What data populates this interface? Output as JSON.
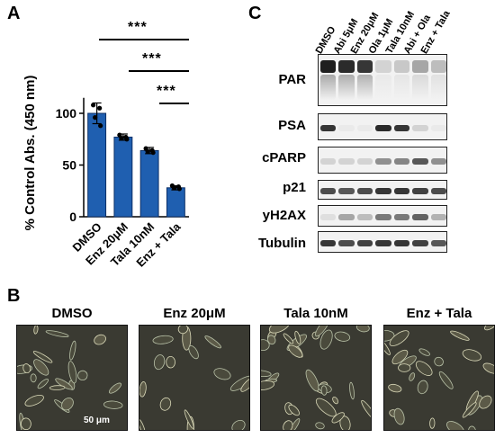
{
  "panels": {
    "a": "A",
    "b": "B",
    "c": "C"
  },
  "significance": {
    "s1": "***",
    "s2": "***",
    "s3": "***"
  },
  "chart_data": {
    "type": "bar",
    "categories": [
      "DMSO",
      "Enz 20μM",
      "Tala 10nM",
      "Enz + Tala"
    ],
    "values": [
      100,
      77,
      64,
      28
    ],
    "errors": [
      10,
      3,
      3,
      2
    ],
    "points": [
      [
        108,
        105,
        96,
        88
      ],
      [
        79,
        77,
        76,
        75
      ],
      [
        66,
        64,
        63,
        62
      ],
      [
        30,
        29,
        28,
        27
      ]
    ],
    "ylabel": "% Control Abs. (450 nm)",
    "yticks": [
      0,
      50,
      100
    ],
    "ylim": [
      0,
      115
    ],
    "bar_color": "#1f5fb0"
  },
  "blot": {
    "lanes": [
      "DMSO",
      "Abi 5μM",
      "Enz 20μM",
      "Ola 1μM",
      "Tala 10nM",
      "Abi + Ola",
      "Enz + Tala"
    ],
    "rows": [
      {
        "label": "PAR",
        "intensity": [
          0.95,
          0.9,
          0.85,
          0.15,
          0.2,
          0.35,
          0.25
        ]
      },
      {
        "label": "PSA",
        "intensity": [
          0.85,
          0.05,
          0.05,
          0.9,
          0.85,
          0.15,
          0.05
        ]
      },
      {
        "label": "cPARP",
        "intensity": [
          0.15,
          0.15,
          0.15,
          0.45,
          0.5,
          0.7,
          0.45
        ]
      },
      {
        "label": "p21",
        "intensity": [
          0.75,
          0.7,
          0.75,
          0.85,
          0.85,
          0.8,
          0.75
        ]
      },
      {
        "label": "yH2AX",
        "intensity": [
          0.1,
          0.35,
          0.25,
          0.55,
          0.55,
          0.65,
          0.3
        ]
      },
      {
        "label": "Tubulin",
        "intensity": [
          0.85,
          0.75,
          0.8,
          0.85,
          0.85,
          0.8,
          0.7
        ]
      }
    ]
  },
  "micrographs": [
    {
      "title": "DMSO"
    },
    {
      "title": "Enz 20μM"
    },
    {
      "title": "Tala 10nM"
    },
    {
      "title": "Enz + Tala"
    }
  ],
  "scale_bar": "50 μm"
}
